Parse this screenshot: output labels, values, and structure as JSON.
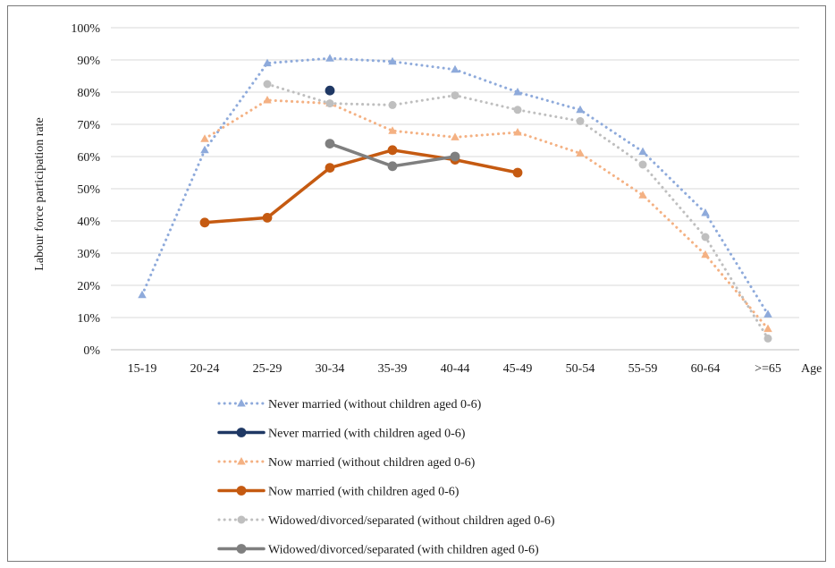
{
  "chart_data": {
    "type": "line",
    "title": "",
    "xlabel": "Age",
    "ylabel": "Labour force participation rate",
    "ylim": [
      0,
      100
    ],
    "y_ticks": [
      "0%",
      "10%",
      "20%",
      "30%",
      "40%",
      "50%",
      "60%",
      "70%",
      "80%",
      "90%",
      "100%"
    ],
    "grid": true,
    "legend_position": "bottom",
    "categories": [
      "15-19",
      "20-24",
      "25-29",
      "30-34",
      "35-39",
      "40-44",
      "45-49",
      "50-54",
      "55-59",
      "60-64",
      ">=65"
    ],
    "series": [
      {
        "name": "Never married (without children aged 0-6)",
        "style": "dotted",
        "marker": "triangle",
        "color": "#8eaadb",
        "values": [
          17,
          62,
          89,
          90.5,
          89.5,
          87,
          80,
          74.5,
          61.5,
          42.5,
          11
        ]
      },
      {
        "name": "Never married (with children aged 0-6)",
        "style": "solid",
        "marker": "circle",
        "color": "#1f3864",
        "values": [
          null,
          null,
          null,
          80.5,
          null,
          null,
          null,
          null,
          null,
          null,
          null
        ]
      },
      {
        "name": "Now married (without children aged 0-6)",
        "style": "dotted",
        "marker": "triangle",
        "color": "#f4b183",
        "values": [
          null,
          65.5,
          77.5,
          76.5,
          68,
          66,
          67.5,
          61,
          48,
          29.5,
          6.5
        ]
      },
      {
        "name": "Now married (with children aged 0-6)",
        "style": "solid",
        "marker": "circle",
        "color": "#c55a11",
        "values": [
          null,
          39.5,
          41,
          56.5,
          62,
          59,
          55,
          null,
          null,
          null,
          null
        ]
      },
      {
        "name": "Widowed/divorced/separated (without children aged 0-6)",
        "style": "dotted",
        "marker": "circle",
        "color": "#bfbfbf",
        "values": [
          null,
          null,
          82.5,
          76.5,
          76,
          79,
          74.5,
          71,
          57.5,
          35,
          3.5
        ]
      },
      {
        "name": "Widowed/divorced/separated (with children aged 0-6)",
        "style": "solid",
        "marker": "circle",
        "color": "#7f7f7f",
        "values": [
          null,
          null,
          null,
          64,
          57,
          60,
          null,
          null,
          null,
          null,
          null
        ]
      }
    ]
  }
}
